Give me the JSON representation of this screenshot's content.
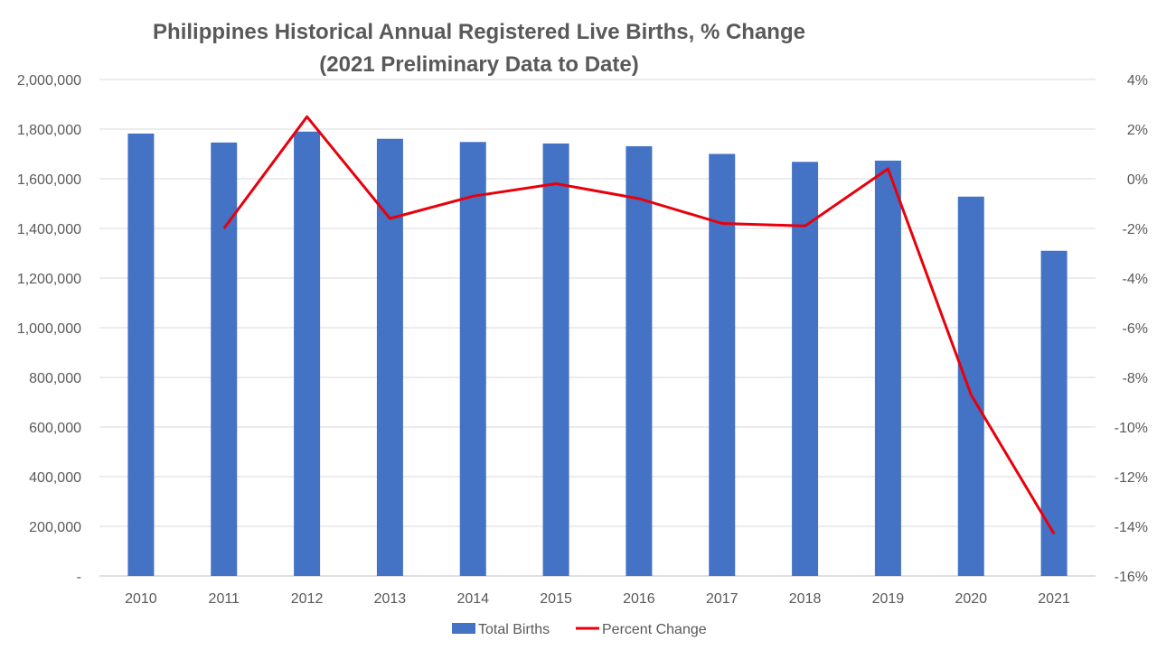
{
  "chart_data": {
    "type": "bar+line",
    "title": "Philippines Historical Annual Registered Live Births, % Change",
    "subtitle": "(2021 Preliminary Data to Date)",
    "categories": [
      "2010",
      "2011",
      "2012",
      "2013",
      "2014",
      "2015",
      "2016",
      "2017",
      "2018",
      "2019",
      "2020",
      "2021"
    ],
    "series": [
      {
        "name": "Total Births",
        "kind": "bar",
        "axis": "left",
        "color": "#4472C4",
        "values": [
          1782000,
          1746000,
          1790000,
          1761000,
          1748000,
          1742000,
          1731000,
          1700000,
          1668000,
          1673000,
          1528000,
          1310000
        ]
      },
      {
        "name": "Percent Change",
        "kind": "line",
        "axis": "right",
        "color": "#E8000B",
        "values": [
          null,
          -2.0,
          2.5,
          -1.6,
          -0.7,
          -0.2,
          -0.8,
          -1.8,
          -1.9,
          0.4,
          -8.7,
          -14.3
        ]
      }
    ],
    "y_left": {
      "min": 0,
      "max": 2000000,
      "step": 200000,
      "tick_labels": [
        "-",
        "200,000",
        "400,000",
        "600,000",
        "800,000",
        "1,000,000",
        "1,200,000",
        "1,400,000",
        "1,600,000",
        "1,800,000",
        "2,000,000"
      ]
    },
    "y_right": {
      "min": -16,
      "max": 4,
      "step": 2,
      "tick_labels": [
        "-16%",
        "-14%",
        "-12%",
        "-10%",
        "-8%",
        "-6%",
        "-4%",
        "-2%",
        "0%",
        "2%",
        "4%"
      ]
    },
    "grid": true,
    "legend_position": "bottom"
  }
}
